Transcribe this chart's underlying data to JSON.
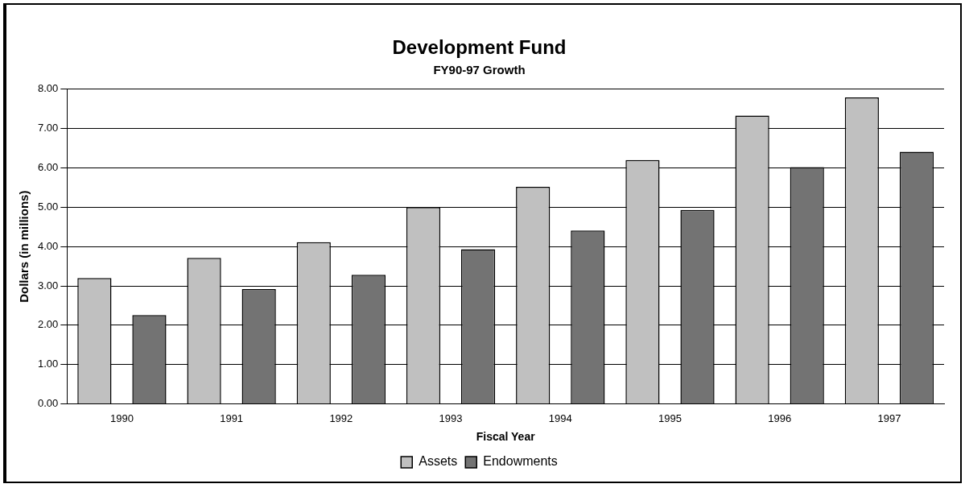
{
  "chart_data": {
    "type": "bar",
    "title": "Development Fund",
    "subtitle": "FY90-97 Growth",
    "xlabel": "Fiscal Year",
    "ylabel": "Dollars (in millions)",
    "categories": [
      "1990",
      "1991",
      "1992",
      "1993",
      "1994",
      "1995",
      "1996",
      "1997"
    ],
    "series": [
      {
        "name": "Assets",
        "color": "#c0c0c0",
        "values": [
          3.2,
          3.71,
          4.11,
          5.0,
          5.52,
          6.2,
          7.33,
          7.79
        ]
      },
      {
        "name": "Endowments",
        "color": "#737373",
        "values": [
          2.26,
          2.92,
          3.28,
          3.93,
          4.41,
          4.93,
          6.02,
          6.41
        ]
      }
    ],
    "ylim": [
      0,
      8
    ],
    "yticks": [
      {
        "value": 0,
        "label": "0.00"
      },
      {
        "value": 1,
        "label": "1.00"
      },
      {
        "value": 2,
        "label": "2.00"
      },
      {
        "value": 3,
        "label": "3.00"
      },
      {
        "value": 4,
        "label": "4.00"
      },
      {
        "value": 5,
        "label": "5.00"
      },
      {
        "value": 6,
        "label": "6.00"
      },
      {
        "value": 7,
        "label": "7.00"
      },
      {
        "value": 8,
        "label": "8.00"
      }
    ],
    "grid": "y",
    "legend": "bottom"
  }
}
